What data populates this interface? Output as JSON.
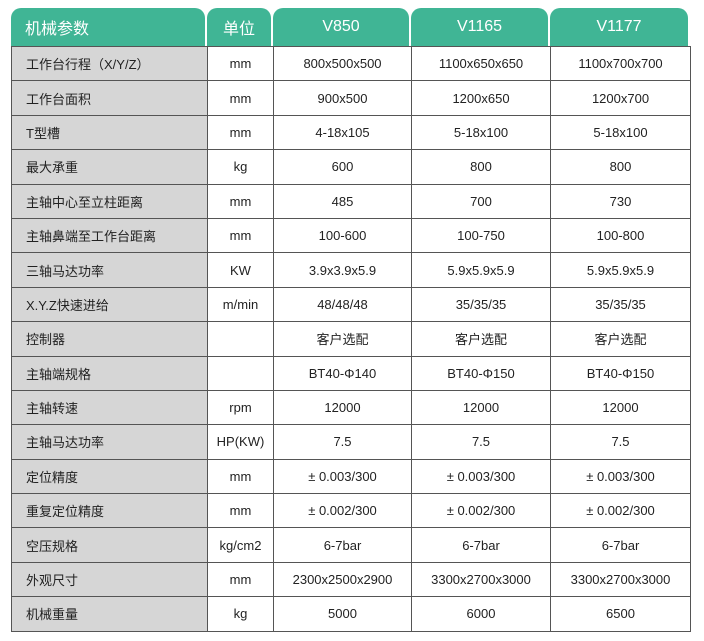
{
  "headers": [
    "机械参数",
    "单位",
    "V850",
    "V1165",
    "V1177"
  ],
  "colors": {
    "header_bg": "#40b595",
    "param_bg": "#d6d6d6"
  },
  "rows": [
    [
      "工作台行程（X/Y/Z）",
      "mm",
      "800x500x500",
      "1100x650x650",
      "1100x700x700"
    ],
    [
      "工作台面积",
      "mm",
      "900x500",
      "1200x650",
      "1200x700"
    ],
    [
      "T型槽",
      "mm",
      "4-18x105",
      "5-18x100",
      "5-18x100"
    ],
    [
      "最大承重",
      "kg",
      "600",
      "800",
      "800"
    ],
    [
      "主轴中心至立柱距离",
      "mm",
      "485",
      "700",
      "730"
    ],
    [
      "主轴鼻端至工作台距离",
      "mm",
      "100-600",
      "100-750",
      "100-800"
    ],
    [
      "三轴马达功率",
      "KW",
      "3.9x3.9x5.9",
      "5.9x5.9x5.9",
      "5.9x5.9x5.9"
    ],
    [
      "X.Y.Z快速进给",
      "m/min",
      "48/48/48",
      "35/35/35",
      "35/35/35"
    ],
    [
      "控制器",
      "",
      "客户选配",
      "客户选配",
      "客户选配"
    ],
    [
      "主轴端规格",
      "",
      "BT40-Φ140",
      "BT40-Φ150",
      "BT40-Φ150"
    ],
    [
      "主轴转速",
      "rpm",
      "12000",
      "12000",
      "12000"
    ],
    [
      "主轴马达功率",
      "HP(KW)",
      "7.5",
      "7.5",
      "7.5"
    ],
    [
      "定位精度",
      "mm",
      "± 0.003/300",
      "± 0.003/300",
      "± 0.003/300"
    ],
    [
      "重复定位精度",
      "mm",
      "± 0.002/300",
      "± 0.002/300",
      "± 0.002/300"
    ],
    [
      "空压规格",
      "kg/cm2",
      "6-7bar",
      "6-7bar",
      "6-7bar"
    ],
    [
      "外观尺寸",
      "mm",
      "2300x2500x2900",
      "3300x2700x3000",
      "3300x2700x3000"
    ],
    [
      "机械重量",
      "kg",
      "5000",
      "6000",
      "6500"
    ]
  ]
}
